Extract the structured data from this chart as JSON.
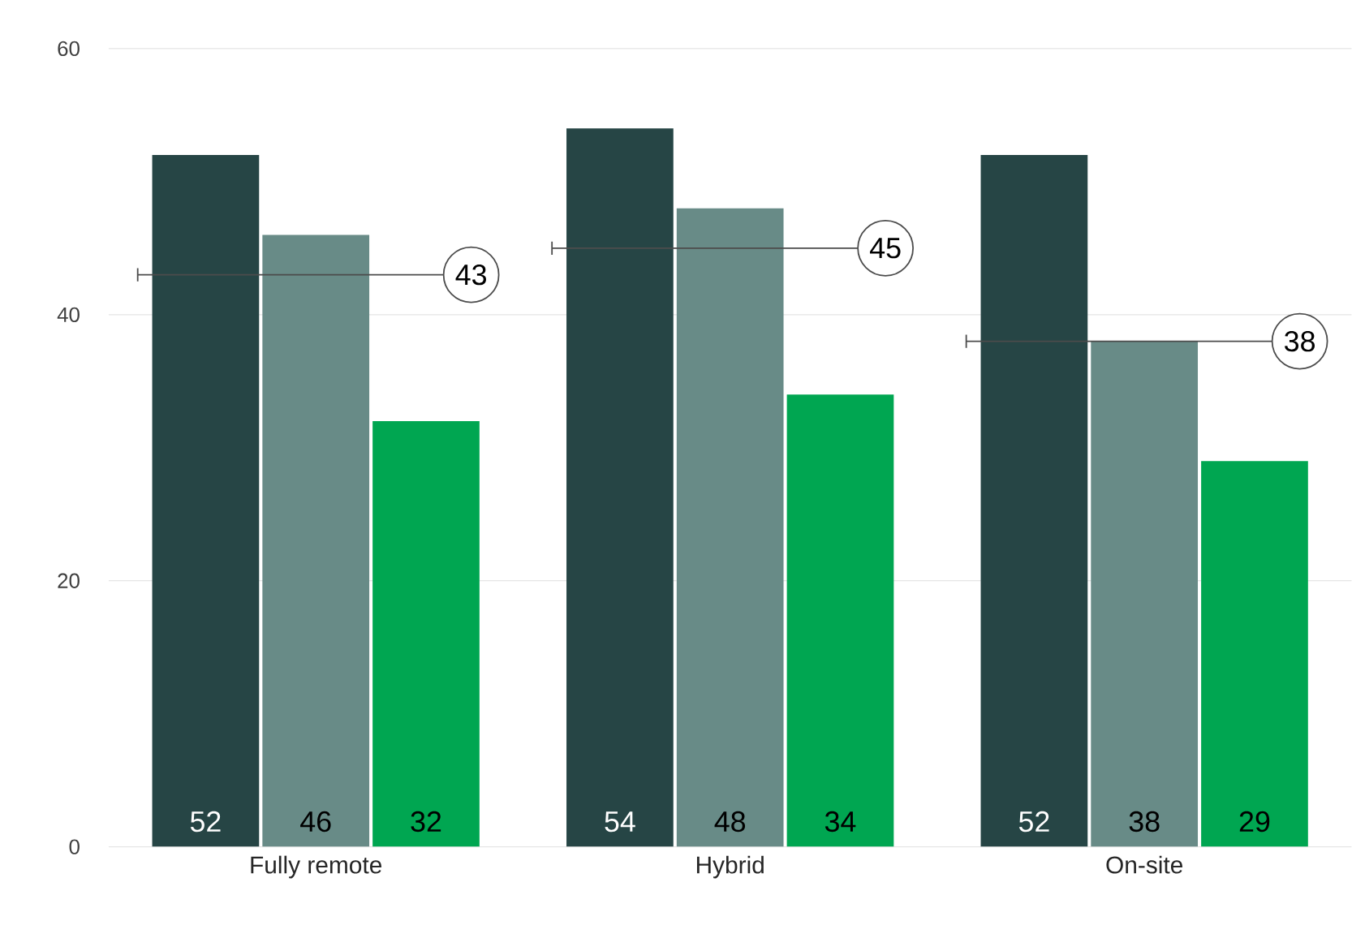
{
  "chart_data": {
    "type": "bar",
    "categories": [
      "Fully remote",
      "Hybrid",
      "On-site"
    ],
    "series": [
      {
        "color": "#264545",
        "values": [
          52,
          54,
          52
        ]
      },
      {
        "color": "#688b87",
        "values": [
          46,
          48,
          38
        ]
      },
      {
        "color": "#00a651",
        "values": [
          32,
          34,
          29
        ]
      }
    ],
    "ylim": [
      0,
      60
    ],
    "yticks": [
      0,
      20,
      40,
      60
    ],
    "grid": "y",
    "data_labels": true,
    "ref_lines": [
      {
        "axis": "y",
        "value": 43,
        "label": "43",
        "color": "#4c4c4c"
      },
      {
        "axis": "y",
        "value": 45,
        "label": "45",
        "color": "#4c4c4c"
      },
      {
        "axis": "y",
        "value": 38,
        "label": "38",
        "color": "#4c4c4c"
      }
    ]
  }
}
